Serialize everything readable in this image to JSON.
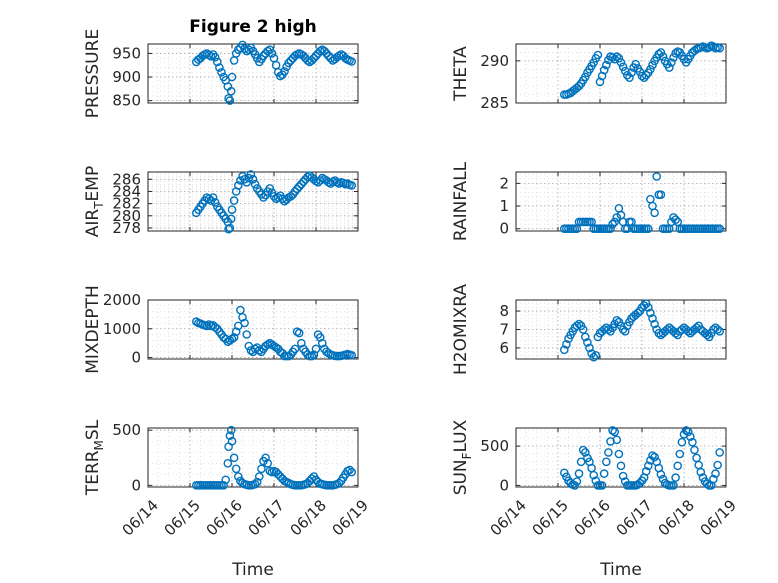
{
  "colors": {
    "marker": "#0072bd",
    "axis": "#262626",
    "grid": "#a8a8a8"
  },
  "chart_data": [
    {
      "type": "scatter",
      "title": "Figure 2 high",
      "xlabel": "",
      "ylabel": "PRESSURE",
      "grid": true,
      "ylim": [
        845,
        970
      ],
      "yticks": [
        850,
        900,
        950
      ],
      "xlim": [
        14.0,
        19.0
      ],
      "x": [
        15.15,
        15.2,
        15.25,
        15.3,
        15.35,
        15.4,
        15.45,
        15.5,
        15.55,
        15.6,
        15.65,
        15.7,
        15.75,
        15.8,
        15.85,
        15.9,
        15.92,
        15.95,
        15.98,
        16.0,
        16.05,
        16.1,
        16.15,
        16.2,
        16.25,
        16.3,
        16.35,
        16.4,
        16.45,
        16.5,
        16.55,
        16.6,
        16.65,
        16.7,
        16.75,
        16.8,
        16.85,
        16.9,
        16.95,
        17.0,
        17.05,
        17.1,
        17.15,
        17.2,
        17.25,
        17.3,
        17.35,
        17.4,
        17.45,
        17.5,
        17.55,
        17.6,
        17.65,
        17.7,
        17.75,
        17.8,
        17.85,
        17.9,
        17.95,
        18.0,
        18.05,
        18.1,
        18.15,
        18.2,
        18.25,
        18.3,
        18.35,
        18.4,
        18.45,
        18.5,
        18.55,
        18.6,
        18.65,
        18.7,
        18.75,
        18.8,
        18.85
      ],
      "y": [
        932,
        937,
        940,
        945,
        948,
        950,
        947,
        944,
        948,
        942,
        932,
        920,
        910,
        900,
        893,
        880,
        855,
        850,
        870,
        900,
        935,
        950,
        958,
        962,
        968,
        960,
        955,
        958,
        962,
        955,
        948,
        940,
        932,
        938,
        945,
        950,
        955,
        958,
        950,
        940,
        925,
        910,
        902,
        905,
        912,
        922,
        930,
        935,
        940,
        945,
        948,
        950,
        948,
        945,
        940,
        935,
        932,
        935,
        940,
        945,
        950,
        955,
        958,
        955,
        950,
        945,
        940,
        935,
        938,
        942,
        945,
        948,
        945,
        940,
        937,
        935,
        933
      ]
    },
    {
      "type": "scatter",
      "title": "",
      "xlabel": "",
      "ylabel": "THETA",
      "grid": true,
      "ylim": [
        285,
        292
      ],
      "yticks": [
        285,
        290
      ],
      "xlim": [
        14.0,
        19.0
      ],
      "x": [
        15.15,
        15.2,
        15.25,
        15.3,
        15.35,
        15.4,
        15.45,
        15.5,
        15.55,
        15.6,
        15.65,
        15.7,
        15.75,
        15.8,
        15.85,
        15.9,
        15.95,
        16.0,
        16.05,
        16.1,
        16.15,
        16.2,
        16.25,
        16.3,
        16.35,
        16.4,
        16.45,
        16.5,
        16.55,
        16.6,
        16.65,
        16.7,
        16.75,
        16.8,
        16.85,
        16.9,
        16.95,
        17.0,
        17.05,
        17.1,
        17.15,
        17.2,
        17.25,
        17.3,
        17.35,
        17.4,
        17.45,
        17.5,
        17.55,
        17.6,
        17.65,
        17.7,
        17.75,
        17.8,
        17.85,
        17.9,
        17.95,
        18.0,
        18.05,
        18.1,
        18.15,
        18.2,
        18.25,
        18.3,
        18.35,
        18.4,
        18.45,
        18.5,
        18.55,
        18.6,
        18.65,
        18.7,
        18.75,
        18.8,
        18.85
      ],
      "y": [
        286,
        286,
        286.1,
        286.2,
        286.4,
        286.6,
        286.8,
        287.0,
        287.3,
        287.7,
        288.1,
        288.6,
        289.0,
        289.4,
        289.8,
        290.3,
        290.7,
        287.5,
        288.2,
        288.9,
        289.5,
        290.1,
        290.5,
        290.4,
        290.2,
        290.5,
        290.3,
        289.8,
        289.3,
        288.8,
        288.3,
        288.0,
        288.6,
        289.2,
        289.6,
        289.1,
        288.7,
        288.2,
        288.0,
        288.3,
        288.6,
        289.0,
        289.5,
        290.0,
        290.4,
        290.8,
        291.0,
        290.5,
        290.0,
        289.6,
        289.2,
        289.8,
        290.4,
        290.9,
        291.1,
        291.0,
        290.6,
        290.2,
        289.8,
        290.2,
        290.6,
        291.0,
        291.2,
        291.4,
        291.5,
        291.6,
        291.7,
        291.6,
        291.5,
        291.6,
        291.8,
        291.7,
        291.5,
        291.6,
        291.5
      ]
    },
    {
      "type": "scatter",
      "title": "",
      "xlabel": "",
      "ylabel": "AIR_TEMP",
      "grid": true,
      "ylim": [
        277.5,
        287.2
      ],
      "yticks": [
        278,
        280,
        282,
        284,
        286
      ],
      "xlim": [
        14.0,
        19.0
      ],
      "x": [
        15.15,
        15.2,
        15.25,
        15.3,
        15.35,
        15.4,
        15.45,
        15.5,
        15.55,
        15.6,
        15.65,
        15.7,
        15.75,
        15.8,
        15.85,
        15.9,
        15.92,
        15.95,
        15.98,
        16.0,
        16.05,
        16.1,
        16.15,
        16.2,
        16.25,
        16.3,
        16.35,
        16.4,
        16.45,
        16.5,
        16.55,
        16.6,
        16.65,
        16.7,
        16.75,
        16.8,
        16.85,
        16.9,
        16.95,
        17.0,
        17.05,
        17.1,
        17.15,
        17.2,
        17.25,
        17.3,
        17.35,
        17.4,
        17.45,
        17.5,
        17.55,
        17.6,
        17.65,
        17.7,
        17.75,
        17.8,
        17.85,
        17.9,
        17.95,
        18.0,
        18.05,
        18.1,
        18.15,
        18.2,
        18.25,
        18.3,
        18.35,
        18.4,
        18.45,
        18.5,
        18.55,
        18.6,
        18.65,
        18.7,
        18.75,
        18.8,
        18.85
      ],
      "y": [
        280.5,
        281.0,
        281.5,
        282.0,
        282.5,
        283.0,
        282.8,
        282.5,
        283.0,
        282.2,
        281.5,
        281.0,
        280.5,
        280.0,
        279.5,
        279.0,
        277.8,
        278.0,
        279.5,
        281.0,
        282.5,
        284.0,
        285.0,
        285.8,
        286.5,
        286.0,
        285.5,
        286.2,
        286.8,
        286.0,
        285.2,
        284.5,
        284.0,
        283.5,
        283.0,
        283.4,
        284.0,
        284.5,
        283.8,
        283.2,
        282.8,
        283.0,
        283.3,
        282.8,
        282.4,
        282.7,
        283.0,
        283.2,
        283.5,
        284.0,
        284.4,
        284.8,
        285.2,
        285.6,
        286.0,
        286.4,
        286.6,
        286.3,
        286.0,
        285.7,
        285.5,
        285.8,
        286.2,
        286.0,
        285.8,
        285.5,
        285.3,
        285.6,
        285.8,
        285.5,
        285.3,
        285.5,
        285.4,
        285.2,
        285.3,
        285.1,
        285.0
      ]
    },
    {
      "type": "scatter",
      "title": "",
      "xlabel": "",
      "ylabel": "RAINFALL",
      "grid": true,
      "ylim": [
        -0.1,
        2.5
      ],
      "yticks": [
        0,
        1,
        2
      ],
      "xlim": [
        14.0,
        19.0
      ],
      "x": [
        15.15,
        15.2,
        15.25,
        15.3,
        15.35,
        15.4,
        15.45,
        15.5,
        15.55,
        15.6,
        15.65,
        15.7,
        15.75,
        15.8,
        15.85,
        15.9,
        15.95,
        16.0,
        16.05,
        16.1,
        16.15,
        16.2,
        16.25,
        16.3,
        16.35,
        16.4,
        16.45,
        16.5,
        16.55,
        16.6,
        16.65,
        16.7,
        16.75,
        16.8,
        16.85,
        16.9,
        16.95,
        17.0,
        17.05,
        17.1,
        17.15,
        17.2,
        17.25,
        17.3,
        17.35,
        17.4,
        17.45,
        17.5,
        17.55,
        17.6,
        17.65,
        17.7,
        17.75,
        17.8,
        17.85,
        17.9,
        17.95,
        18.0,
        18.05,
        18.1,
        18.15,
        18.2,
        18.25,
        18.3,
        18.35,
        18.4,
        18.45,
        18.5,
        18.55,
        18.6,
        18.65,
        18.7,
        18.75,
        18.8,
        18.85
      ],
      "y": [
        0,
        0,
        0,
        0,
        0,
        0,
        0,
        0.3,
        0.3,
        0.3,
        0.3,
        0.3,
        0.3,
        0.3,
        0,
        0,
        0,
        0,
        0,
        0,
        0,
        0,
        0,
        0.2,
        0.3,
        0.5,
        0.9,
        0.6,
        0.3,
        0,
        0,
        0.3,
        0.3,
        0,
        0,
        0,
        0,
        0,
        0,
        0,
        0,
        1.3,
        1.0,
        0.7,
        2.3,
        1.5,
        1.5,
        0,
        0,
        0,
        0,
        0.3,
        0.5,
        0.4,
        0.3,
        0,
        0,
        0,
        0,
        0,
        0,
        0,
        0,
        0,
        0,
        0,
        0,
        0,
        0,
        0,
        0,
        0,
        0,
        0,
        0
      ]
    },
    {
      "type": "scatter",
      "title": "",
      "xlabel": "",
      "ylabel": "MIXDEPTH",
      "grid": true,
      "ylim": [
        -50,
        2000
      ],
      "yticks": [
        0,
        1000,
        2000
      ],
      "xlim": [
        14.0,
        19.0
      ],
      "x": [
        15.15,
        15.2,
        15.25,
        15.3,
        15.35,
        15.4,
        15.45,
        15.5,
        15.55,
        15.6,
        15.65,
        15.7,
        15.75,
        15.8,
        15.85,
        15.9,
        15.95,
        16.0,
        16.05,
        16.1,
        16.15,
        16.2,
        16.25,
        16.3,
        16.35,
        16.4,
        16.45,
        16.5,
        16.55,
        16.6,
        16.65,
        16.7,
        16.75,
        16.8,
        16.85,
        16.9,
        16.95,
        17.0,
        17.05,
        17.1,
        17.15,
        17.2,
        17.25,
        17.3,
        17.35,
        17.4,
        17.45,
        17.5,
        17.55,
        17.6,
        17.65,
        17.7,
        17.75,
        17.8,
        17.85,
        17.9,
        17.95,
        18.0,
        18.05,
        18.1,
        18.15,
        18.2,
        18.25,
        18.3,
        18.35,
        18.4,
        18.45,
        18.5,
        18.55,
        18.6,
        18.65,
        18.7,
        18.75,
        18.8,
        18.85
      ],
      "y": [
        1250,
        1200,
        1180,
        1150,
        1120,
        1100,
        1150,
        1100,
        1120,
        1050,
        1000,
        900,
        800,
        700,
        650,
        550,
        600,
        650,
        700,
        900,
        1100,
        1650,
        1400,
        1200,
        800,
        400,
        250,
        200,
        300,
        350,
        250,
        200,
        300,
        400,
        450,
        500,
        450,
        400,
        350,
        300,
        200,
        150,
        50,
        50,
        50,
        100,
        200,
        300,
        900,
        850,
        500,
        300,
        200,
        100,
        50,
        50,
        100,
        300,
        800,
        700,
        500,
        300,
        200,
        150,
        100,
        80,
        60,
        50,
        50,
        60,
        80,
        100,
        120,
        100,
        80
      ]
    },
    {
      "type": "scatter",
      "title": "",
      "xlabel": "",
      "ylabel": "H2OMIXRA",
      "grid": true,
      "ylim": [
        5.4,
        8.6
      ],
      "yticks": [
        6,
        7,
        8
      ],
      "xlim": [
        14.0,
        19.0
      ],
      "x": [
        15.15,
        15.2,
        15.25,
        15.3,
        15.35,
        15.4,
        15.45,
        15.5,
        15.55,
        15.6,
        15.65,
        15.7,
        15.75,
        15.8,
        15.85,
        15.9,
        15.95,
        16.0,
        16.05,
        16.1,
        16.15,
        16.2,
        16.25,
        16.3,
        16.35,
        16.4,
        16.45,
        16.5,
        16.55,
        16.6,
        16.65,
        16.7,
        16.75,
        16.8,
        16.85,
        16.9,
        16.95,
        17.0,
        17.05,
        17.1,
        17.15,
        17.2,
        17.25,
        17.3,
        17.35,
        17.4,
        17.45,
        17.5,
        17.55,
        17.6,
        17.65,
        17.7,
        17.75,
        17.8,
        17.85,
        17.9,
        17.95,
        18.0,
        18.05,
        18.1,
        18.15,
        18.2,
        18.25,
        18.3,
        18.35,
        18.4,
        18.45,
        18.5,
        18.55,
        18.6,
        18.65,
        18.7,
        18.75,
        18.8,
        18.85
      ],
      "y": [
        5.9,
        6.2,
        6.5,
        6.7,
        6.9,
        7.1,
        7.2,
        7.3,
        7.2,
        7.0,
        6.6,
        6.3,
        6.0,
        5.7,
        5.5,
        5.6,
        6.6,
        6.8,
        6.9,
        7.0,
        7.1,
        7.0,
        6.9,
        7.1,
        7.3,
        7.5,
        7.4,
        7.2,
        7.0,
        6.9,
        7.2,
        7.4,
        7.6,
        7.7,
        7.8,
        7.9,
        8.0,
        8.2,
        8.3,
        8.4,
        8.2,
        7.9,
        7.6,
        7.3,
        7.0,
        6.8,
        6.7,
        6.8,
        6.9,
        7.0,
        7.1,
        7.0,
        6.9,
        6.8,
        6.7,
        6.9,
        7.0,
        7.1,
        7.0,
        6.9,
        6.8,
        6.9,
        7.0,
        7.1,
        7.2,
        7.0,
        6.9,
        6.8,
        6.7,
        6.6,
        6.8,
        7.0,
        7.1,
        7.0,
        6.9
      ]
    },
    {
      "type": "scatter",
      "title": "",
      "xlabel": "Time",
      "ylabel": "TERR_MSL",
      "grid": true,
      "ylim": [
        -15,
        520
      ],
      "yticks": [
        0,
        500
      ],
      "xlim": [
        14.0,
        19.0
      ],
      "xticks": [
        14,
        15,
        16,
        17,
        18,
        19
      ],
      "xticklabels": [
        "06/14",
        "06/15",
        "06/16",
        "06/17",
        "06/18",
        "06/19"
      ],
      "x": [
        15.15,
        15.2,
        15.25,
        15.3,
        15.35,
        15.4,
        15.45,
        15.5,
        15.55,
        15.6,
        15.65,
        15.7,
        15.75,
        15.8,
        15.85,
        15.9,
        15.92,
        15.95,
        15.98,
        16.0,
        16.05,
        16.1,
        16.15,
        16.2,
        16.25,
        16.3,
        16.35,
        16.4,
        16.45,
        16.5,
        16.55,
        16.6,
        16.65,
        16.7,
        16.75,
        16.8,
        16.85,
        16.9,
        16.95,
        17.0,
        17.05,
        17.1,
        17.15,
        17.2,
        17.25,
        17.3,
        17.35,
        17.4,
        17.45,
        17.5,
        17.55,
        17.6,
        17.65,
        17.7,
        17.75,
        17.8,
        17.85,
        17.9,
        17.95,
        18.0,
        18.05,
        18.1,
        18.15,
        18.2,
        18.25,
        18.3,
        18.35,
        18.4,
        18.45,
        18.5,
        18.55,
        18.6,
        18.65,
        18.7,
        18.75,
        18.8,
        18.85
      ],
      "y": [
        0,
        0,
        0,
        0,
        0,
        0,
        0,
        0,
        0,
        0,
        0,
        0,
        0,
        0,
        50,
        200,
        350,
        450,
        500,
        400,
        250,
        150,
        80,
        40,
        20,
        10,
        5,
        0,
        0,
        5,
        10,
        30,
        80,
        150,
        220,
        250,
        200,
        130,
        120,
        130,
        120,
        100,
        80,
        60,
        40,
        30,
        20,
        10,
        5,
        0,
        0,
        0,
        0,
        5,
        10,
        20,
        40,
        60,
        80,
        50,
        30,
        15,
        10,
        5,
        0,
        0,
        0,
        0,
        5,
        10,
        20,
        40,
        70,
        100,
        130,
        140,
        120
      ]
    },
    {
      "type": "scatter",
      "title": "",
      "xlabel": "Time",
      "ylabel": "SUN_FLUX",
      "grid": true,
      "ylim": [
        -20,
        730
      ],
      "yticks": [
        0,
        500
      ],
      "xlim": [
        14.0,
        19.0
      ],
      "xticks": [
        14,
        15,
        16,
        17,
        18,
        19
      ],
      "xticklabels": [
        "06/14",
        "06/15",
        "06/16",
        "06/17",
        "06/18",
        "06/19"
      ],
      "x": [
        15.15,
        15.2,
        15.25,
        15.3,
        15.35,
        15.4,
        15.45,
        15.5,
        15.55,
        15.6,
        15.65,
        15.7,
        15.75,
        15.8,
        15.85,
        15.9,
        15.95,
        16.0,
        16.05,
        16.1,
        16.15,
        16.2,
        16.25,
        16.3,
        16.35,
        16.4,
        16.45,
        16.5,
        16.55,
        16.6,
        16.65,
        16.7,
        16.75,
        16.8,
        16.85,
        16.9,
        16.95,
        17.0,
        17.05,
        17.1,
        17.15,
        17.2,
        17.25,
        17.3,
        17.35,
        17.4,
        17.45,
        17.5,
        17.55,
        17.6,
        17.65,
        17.7,
        17.75,
        17.8,
        17.85,
        17.9,
        17.95,
        18.0,
        18.05,
        18.1,
        18.15,
        18.2,
        18.25,
        18.3,
        18.35,
        18.4,
        18.45,
        18.5,
        18.55,
        18.6,
        18.65,
        18.7,
        18.75,
        18.8,
        18.85
      ],
      "y": [
        160,
        110,
        60,
        30,
        10,
        0,
        50,
        150,
        300,
        450,
        420,
        350,
        300,
        220,
        130,
        60,
        0,
        0,
        0,
        150,
        300,
        420,
        560,
        700,
        680,
        580,
        400,
        250,
        120,
        50,
        0,
        0,
        0,
        0,
        0,
        10,
        30,
        60,
        100,
        180,
        250,
        320,
        380,
        360,
        300,
        220,
        140,
        80,
        30,
        10,
        0,
        0,
        0,
        100,
        250,
        400,
        550,
        650,
        700,
        680,
        620,
        550,
        450,
        350,
        260,
        170,
        100,
        50,
        20,
        0,
        0,
        80,
        150,
        260,
        420
      ]
    }
  ]
}
